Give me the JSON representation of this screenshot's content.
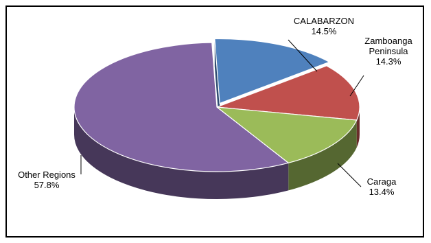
{
  "chart_data": {
    "type": "pie",
    "title": "",
    "slices": [
      {
        "label_lines": [
          "CALABARZON"
        ],
        "percent_text": "14.5%",
        "value": 14.5,
        "color": "#4F81BD",
        "exploded": true
      },
      {
        "label_lines": [
          "Zamboanga",
          "Peninsula"
        ],
        "percent_text": "14.3%",
        "value": 14.3,
        "color": "#C0504D",
        "exploded": false
      },
      {
        "label_lines": [
          "Caraga"
        ],
        "percent_text": "13.4%",
        "value": 13.4,
        "color": "#9BBB59",
        "exploded": false
      },
      {
        "label_lines": [
          "Other Regions"
        ],
        "percent_text": "57.8%",
        "value": 57.8,
        "color": "#8064A2",
        "exploded": false
      }
    ],
    "legend": "none",
    "style": "3d-exploded"
  }
}
